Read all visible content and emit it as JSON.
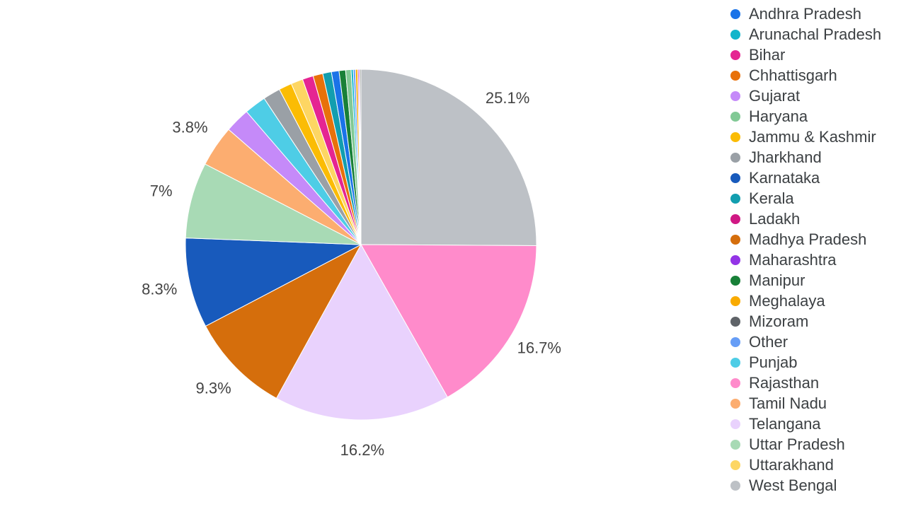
{
  "chart_data": {
    "type": "pie",
    "categories": [
      "West Bengal",
      "Rajasthan",
      "Telangana",
      "Madhya Pradesh",
      "Karnataka",
      "Uttar Pradesh",
      "Tamil Nadu",
      "Gujarat",
      "Punjab",
      "Jharkhand",
      "Jammu & Kashmir",
      "Uttarakhand",
      "Bihar",
      "Chhattisgarh",
      "Kerala",
      "Andhra Pradesh",
      "Manipur",
      "Haryana",
      "Arunachal Pradesh",
      "Other",
      "Meghalaya",
      "Ladakh",
      "Maharashtra",
      "Mizoram"
    ],
    "values": [
      25.1,
      16.7,
      16.2,
      9.3,
      8.3,
      7,
      3.8,
      2.3,
      2.0,
      1.6,
      1.2,
      1.1,
      1.0,
      0.9,
      0.8,
      0.7,
      0.6,
      0.5,
      0.2,
      0.2,
      0.2,
      0.1,
      0.1,
      0.1
    ],
    "value_labels": [
      "25.1%",
      "16.7%",
      "16.2%",
      "9.3%",
      "8.3%",
      "7%",
      "3.8%",
      null,
      null,
      null,
      null,
      null,
      null,
      null,
      null,
      null,
      null,
      null,
      null,
      null,
      null,
      null,
      null,
      null
    ],
    "colors": [
      "#bdc1c6",
      "#ff8bcb",
      "#e9d2fd",
      "#d56e0c",
      "#185abc",
      "#a8dab5",
      "#fcad70",
      "#c58af9",
      "#4ecde6",
      "#9aa0a6",
      "#fbbc04",
      "#fdd663",
      "#e52592",
      "#e8710a",
      "#129eaf",
      "#1a73e8",
      "#188038",
      "#81c995",
      "#12b5cb",
      "#669df6",
      "#f9ab00",
      "#d01884",
      "#9334e6",
      "#5f6368"
    ],
    "legend": "right"
  }
}
